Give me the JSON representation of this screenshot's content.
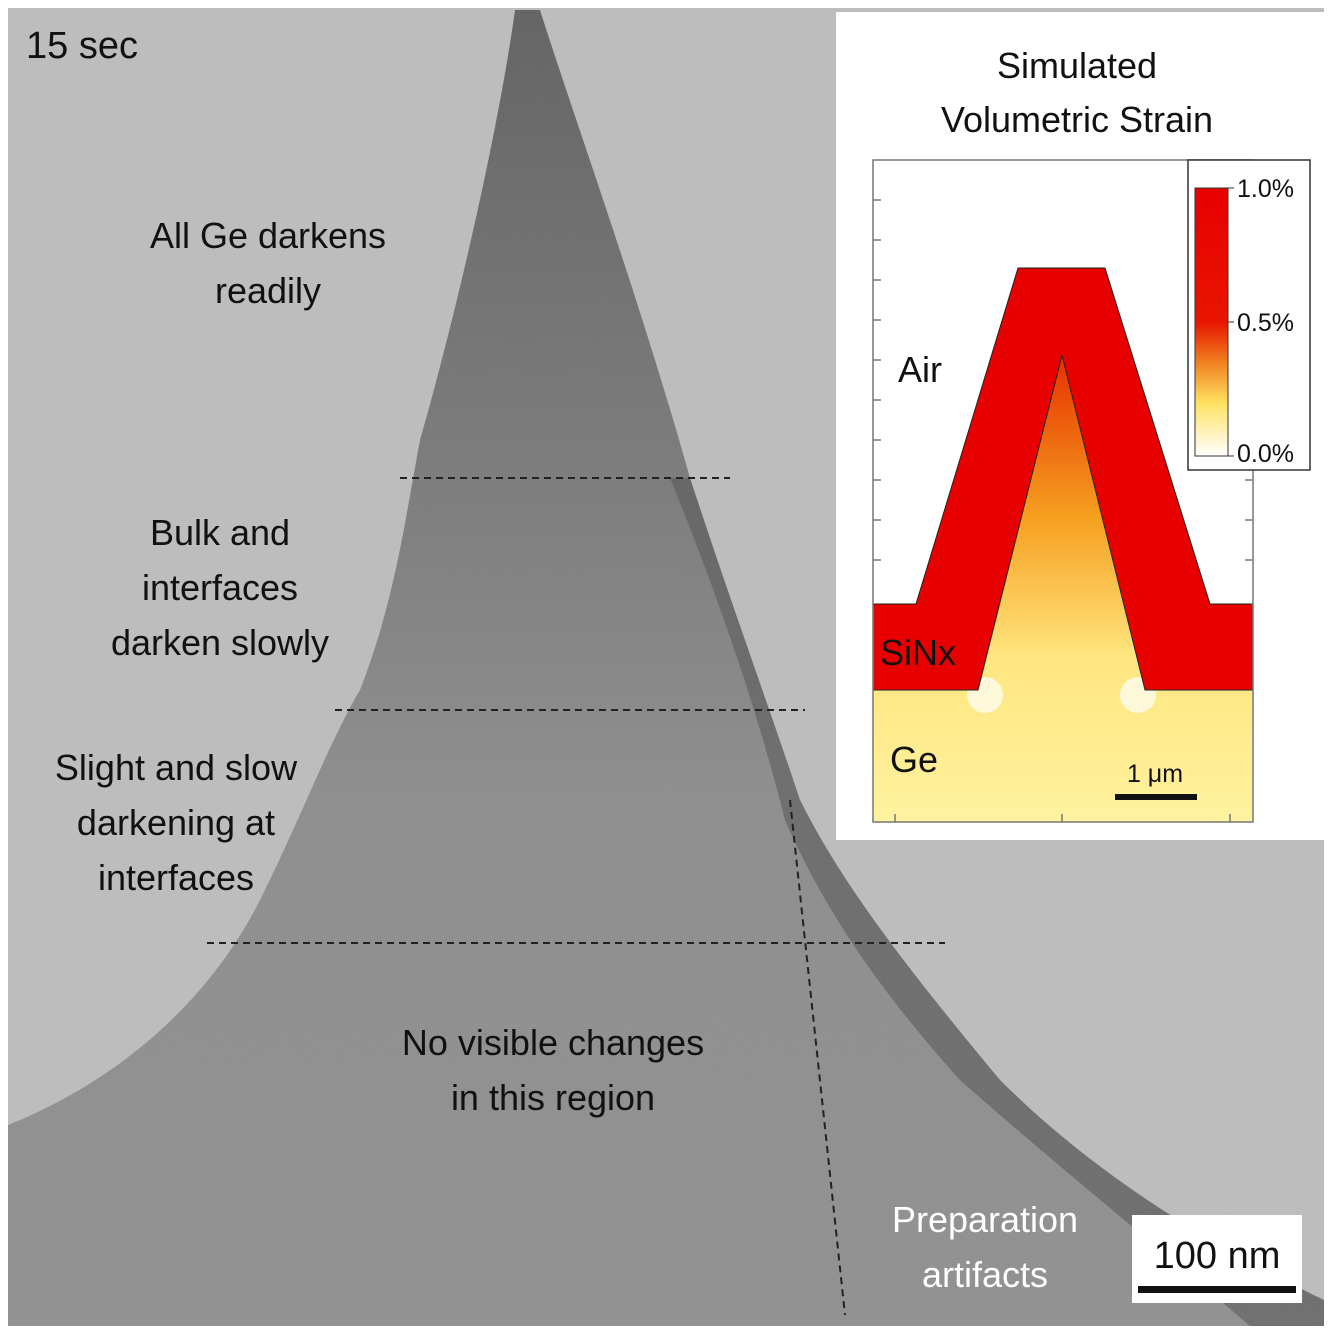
{
  "timestamp": "15 sec",
  "regions": [
    {
      "lines": [
        "All Ge darkens",
        "readily"
      ]
    },
    {
      "lines": [
        "Bulk and",
        "interfaces",
        "darken slowly"
      ]
    },
    {
      "lines": [
        "Slight and slow",
        "darkening at",
        "interfaces"
      ]
    },
    {
      "lines": [
        "No visible changes",
        "in this region"
      ]
    }
  ],
  "artifacts": {
    "lines": [
      "Preparation",
      "artifacts"
    ]
  },
  "scale_bar": "100 nm",
  "inset": {
    "title": [
      "Simulated",
      "Volumetric Strain"
    ],
    "labels": {
      "air": "Air",
      "sinx": "SiNx",
      "ge": "Ge"
    },
    "scale_bar": "1 μm",
    "colorbar_ticks": [
      "1.0%",
      "0.5%",
      "0.0%"
    ]
  }
}
